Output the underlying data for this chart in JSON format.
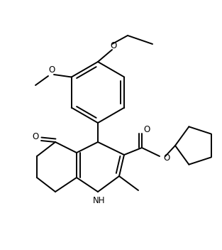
{
  "background_color": "#ffffff",
  "line_color": "#000000",
  "line_width": 1.4,
  "figsize": [
    3.13,
    3.52
  ],
  "dpi": 100,
  "xlim": [
    0,
    313
  ],
  "ylim": [
    0,
    352
  ]
}
